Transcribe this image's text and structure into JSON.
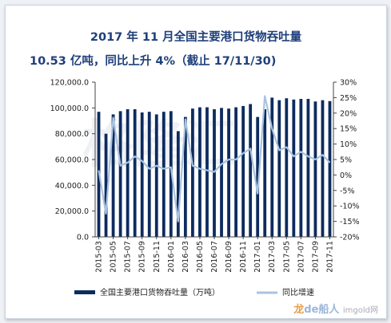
{
  "header": {
    "title_line1": "2017 年 11 月全国主要港口货物吞吐量",
    "title_line2": "10.53 亿吨，同比上升 4%（截止 17/11/30)"
  },
  "watermark": {
    "text": "格隆汇"
  },
  "credit": {
    "prefix": "龙",
    "mid": "de",
    "suffix": "船人",
    "site": "imgold网"
  },
  "chart_data": {
    "type": "bar+line",
    "categories": [
      "2015-03",
      "2015-04",
      "2015-05",
      "2015-06",
      "2015-07",
      "2015-08",
      "2015-09",
      "2015-10",
      "2015-11",
      "2015-12",
      "2016-01",
      "2016-02",
      "2016-03",
      "2016-04",
      "2016-05",
      "2016-06",
      "2016-07",
      "2016-08",
      "2016-09",
      "2016-10",
      "2016-11",
      "2016-12",
      "2017-01",
      "2017-02",
      "2017-03",
      "2017-04",
      "2017-05",
      "2017-06",
      "2017-07",
      "2017-08",
      "2017-09",
      "2017-10",
      "2017-11"
    ],
    "x_tick_labels": [
      "2015-03",
      "2015-05",
      "2015-07",
      "2015-09",
      "2015-11",
      "2016-01",
      "2016-03",
      "2016-05",
      "2016-07",
      "2016-09",
      "2016-11",
      "2017-01",
      "2017-03",
      "2017-05",
      "2017-07",
      "2017-09",
      "2017-11"
    ],
    "series": [
      {
        "name": "全国主要港口货物吞吐量（万吨）",
        "type": "bar",
        "axis": "left",
        "color": "#0d2b5e",
        "values": [
          97000,
          80000,
          95000,
          97500,
          99000,
          99000,
          96500,
          97000,
          95000,
          97000,
          97500,
          82000,
          93000,
          99500,
          100500,
          100500,
          99000,
          100000,
          99500,
          100500,
          101500,
          103000,
          93000,
          99000,
          108000,
          106000,
          107500,
          106500,
          107000,
          107000,
          105000,
          106000,
          105300
        ]
      },
      {
        "name": "同比增速",
        "type": "line",
        "axis": "right",
        "color": "#a9c3e0",
        "values": [
          1.5,
          -12.5,
          18.5,
          3,
          4,
          6,
          4.5,
          2,
          3,
          2,
          2.5,
          -15,
          18,
          3,
          2,
          1.5,
          1,
          3.5,
          5,
          5,
          7,
          8.5,
          -6,
          25.5,
          15,
          8,
          9,
          6,
          7.5,
          6,
          5,
          6.5,
          4
        ]
      }
    ],
    "y_left": {
      "min": 0,
      "max": 120000,
      "ticks": [
        "0.0",
        "20,000.0",
        "40,000.0",
        "60,000.0",
        "80,000.0",
        "100,000.0",
        "120,000.0"
      ]
    },
    "y_right": {
      "min": -20,
      "max": 30,
      "ticks": [
        "-20%",
        "-15%",
        "-10%",
        "-5%",
        "0%",
        "5%",
        "10%",
        "15%",
        "20%",
        "25%",
        "30%"
      ]
    },
    "legend": {
      "placement": "bottom",
      "bar_label": "全国主要港口货物吞吐量（万吨）",
      "line_label": "同比增速"
    },
    "grid": false
  }
}
